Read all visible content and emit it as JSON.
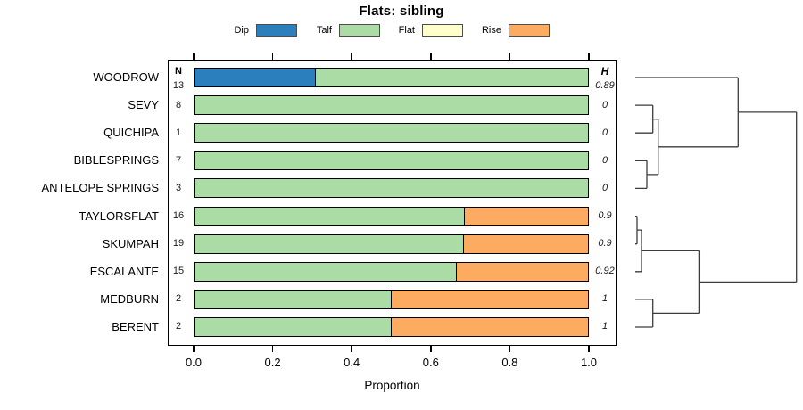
{
  "title": "Flats: sibling",
  "legend": {
    "items": [
      {
        "label": "Dip",
        "color": "#2B7FBC"
      },
      {
        "label": "Talf",
        "color": "#ABDCA5"
      },
      {
        "label": "Flat",
        "color": "#FFFFCC"
      },
      {
        "label": "Rise",
        "color": "#FCAB61"
      }
    ]
  },
  "columns": {
    "n_header": "N",
    "h_header": "H"
  },
  "axis": {
    "xlabel": "Proportion",
    "tick_labels": [
      "0.0",
      "0.2",
      "0.4",
      "0.6",
      "0.8",
      "1.0"
    ]
  },
  "chart_data": {
    "type": "bar",
    "orientation": "horizontal-stacked",
    "title": "Flats: sibling",
    "xlabel": "Proportion",
    "xlim": [
      0,
      1
    ],
    "xticks": [
      0.0,
      0.2,
      0.4,
      0.6,
      0.8,
      1.0
    ],
    "grid": false,
    "legend_position": "top",
    "categories": [
      "WOODROW",
      "SEVY",
      "QUICHIPA",
      "BIBLESPRINGS",
      "ANTELOPE SPRINGS",
      "TAYLORSFLAT",
      "SKUMPAH",
      "ESCALANTE",
      "MEDBURN",
      "BERENT"
    ],
    "n_values": [
      13,
      8,
      1,
      7,
      3,
      16,
      19,
      15,
      2,
      2
    ],
    "h_values": [
      "0.89",
      "0",
      "0",
      "0",
      "0",
      "0.9",
      "0.9",
      "0.92",
      "1",
      "1"
    ],
    "series": [
      {
        "name": "Dip",
        "color": "#2B7FBC",
        "values": [
          0.308,
          0,
          0,
          0,
          0,
          0,
          0,
          0,
          0,
          0
        ]
      },
      {
        "name": "Talf",
        "color": "#ABDCA5",
        "values": [
          0.692,
          1,
          1,
          1,
          1,
          0.688,
          0.684,
          0.667,
          0.5,
          0.5
        ]
      },
      {
        "name": "Flat",
        "color": "#FFFFCC",
        "values": [
          0,
          0,
          0,
          0,
          0,
          0,
          0,
          0,
          0,
          0
        ]
      },
      {
        "name": "Rise",
        "color": "#FCAB61",
        "values": [
          0,
          0,
          0,
          0,
          0,
          0.312,
          0.316,
          0.333,
          0.5,
          0.5
        ]
      }
    ],
    "dendrogram": {
      "side": "right",
      "leaves": [
        "WOODROW",
        "SEVY",
        "QUICHIPA",
        "BIBLESPRINGS",
        "ANTELOPE SPRINGS",
        "TAYLORSFLAT",
        "SKUMPAH",
        "ESCALANTE",
        "MEDBURN",
        "BERENT"
      ],
      "merges": [
        {
          "id": "M1",
          "a": "L1",
          "b": "L2",
          "height": 0.109
        },
        {
          "id": "M2",
          "a": "L3",
          "b": "L4",
          "height": 0.072
        },
        {
          "id": "M3",
          "a": "M1",
          "b": "M2",
          "height": 0.142
        },
        {
          "id": "M4",
          "a": "L0",
          "b": "M3",
          "height": 0.638
        },
        {
          "id": "M5",
          "a": "L5",
          "b": "L6",
          "height": 0.011
        },
        {
          "id": "M6",
          "a": "M5",
          "b": "L7",
          "height": 0.039
        },
        {
          "id": "M7",
          "a": "L8",
          "b": "L9",
          "height": 0.109
        },
        {
          "id": "M8",
          "a": "M6",
          "b": "M7",
          "height": 0.395
        },
        {
          "id": "M9",
          "a": "M4",
          "b": "M8",
          "height": 1.0
        }
      ]
    }
  }
}
